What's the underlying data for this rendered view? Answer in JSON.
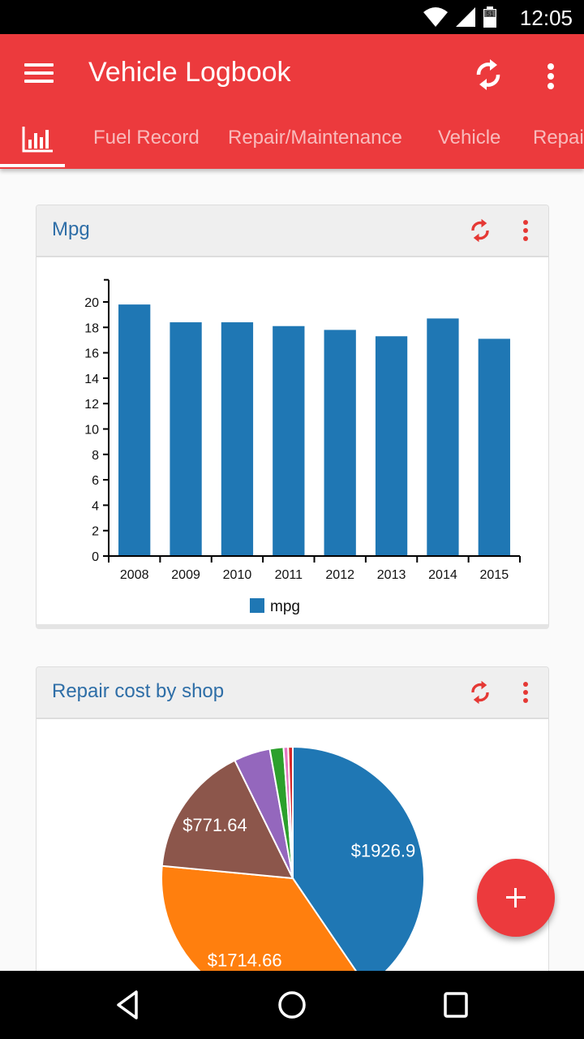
{
  "status_bar": {
    "time": "12:05",
    "battery_level": "51",
    "icons": [
      "wifi-icon",
      "cell-signal-icon",
      "battery-icon"
    ]
  },
  "app_bar": {
    "title": "Vehicle Logbook",
    "background_color": "#ec3a3d",
    "actions": [
      "menu-icon",
      "sync-icon",
      "more-vert-icon"
    ]
  },
  "tabs": [
    {
      "label": "",
      "icon": "bar-chart-icon",
      "active": true
    },
    {
      "label": "Fuel Record"
    },
    {
      "label": "Repair/Maintenance"
    },
    {
      "label": "Vehicle"
    },
    {
      "label": "Repai"
    }
  ],
  "cards": [
    {
      "title": "Mpg",
      "actions": [
        "sync-icon",
        "more-vert-icon"
      ]
    },
    {
      "title": "Repair cost by shop",
      "actions": [
        "sync-icon",
        "more-vert-icon"
      ]
    }
  ],
  "fab": {
    "icon": "plus-icon"
  },
  "nav_bar": {
    "buttons": [
      "back-icon",
      "home-icon",
      "recents-icon"
    ]
  },
  "chart_data": [
    {
      "type": "bar",
      "title": "Mpg",
      "categories": [
        "2008",
        "2009",
        "2010",
        "2011",
        "2012",
        "2013",
        "2014",
        "2015"
      ],
      "series": [
        {
          "name": "mpg",
          "values": [
            19.8,
            18.4,
            18.4,
            18.1,
            17.8,
            17.3,
            18.7,
            17.1
          ],
          "color": "#1f77b4"
        }
      ],
      "xlabel": "",
      "ylabel": "",
      "ylim": [
        0,
        22
      ],
      "yticks": [
        0,
        2,
        4,
        6,
        8,
        10,
        12,
        14,
        16,
        18,
        20
      ],
      "grid": false,
      "legend": {
        "position": "bottom",
        "entries": [
          "mpg"
        ]
      }
    },
    {
      "type": "pie",
      "title": "Repair cost by shop",
      "slices": [
        {
          "label": "$1926.9",
          "value": 1926.9,
          "color": "#1f77b4"
        },
        {
          "label": "$1714.66",
          "value": 1714.66,
          "color": "#ff7f0e"
        },
        {
          "label": "$771.64",
          "value": 771.64,
          "color": "#8c564b"
        },
        {
          "label": "",
          "value": 213,
          "color": "#9467bd"
        },
        {
          "label": "",
          "value": 80,
          "color": "#2ca02c"
        },
        {
          "label": "",
          "value": 27,
          "color": "#e377c2"
        },
        {
          "label": "",
          "value": 27,
          "color": "#d62728"
        }
      ]
    }
  ]
}
